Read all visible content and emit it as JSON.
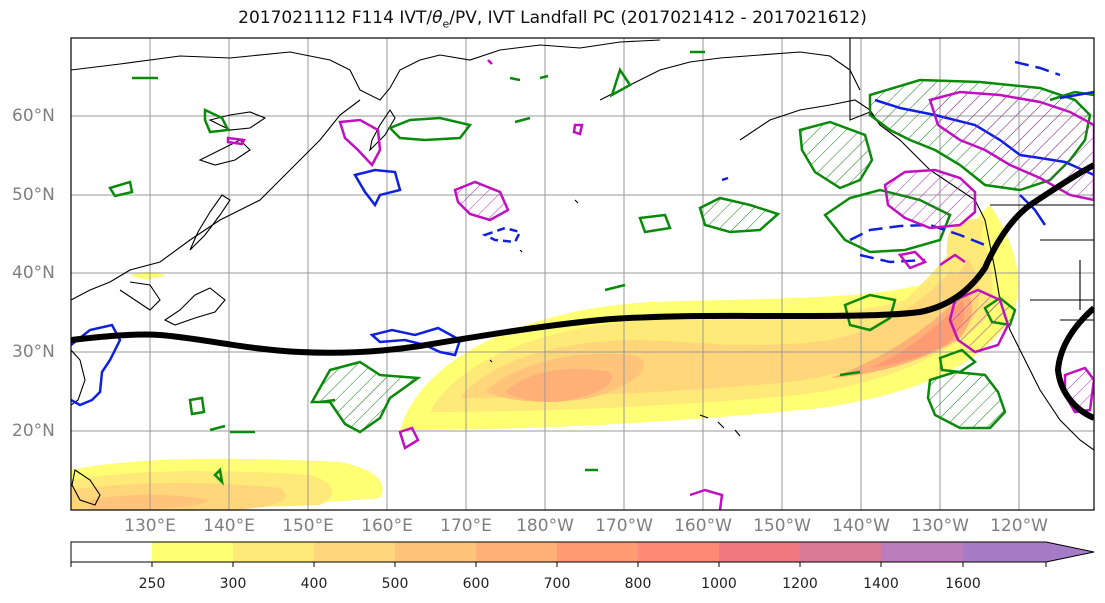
{
  "title": {
    "main": "2017021112 F114 IVT/",
    "theta": "θ",
    "sub": "e",
    "rest": "/PV, IVT Landfall PC (2017021412 - 2017021612)"
  },
  "map": {
    "lat_labels": [
      "60°N",
      "50°N",
      "40°N",
      "30°N",
      "20°N"
    ],
    "lon_labels": [
      "130°E",
      "140°E",
      "150°E",
      "160°E",
      "170°E",
      "180°W",
      "170°W",
      "160°W",
      "150°W",
      "140°W",
      "130°W",
      "120°W"
    ]
  },
  "colorbar": {
    "ticks": [
      "250",
      "300",
      "400",
      "500",
      "600",
      "700",
      "800",
      "1000",
      "1200",
      "1400",
      "1600"
    ],
    "colors": [
      "#ffffff",
      "#ffff73",
      "#ffe978",
      "#ffd67a",
      "#ffc47a",
      "#ffb077",
      "#ff9a72",
      "#ff8a75",
      "#f07a80",
      "#d97a99",
      "#bb7dbb",
      "#a77cc6"
    ]
  }
}
